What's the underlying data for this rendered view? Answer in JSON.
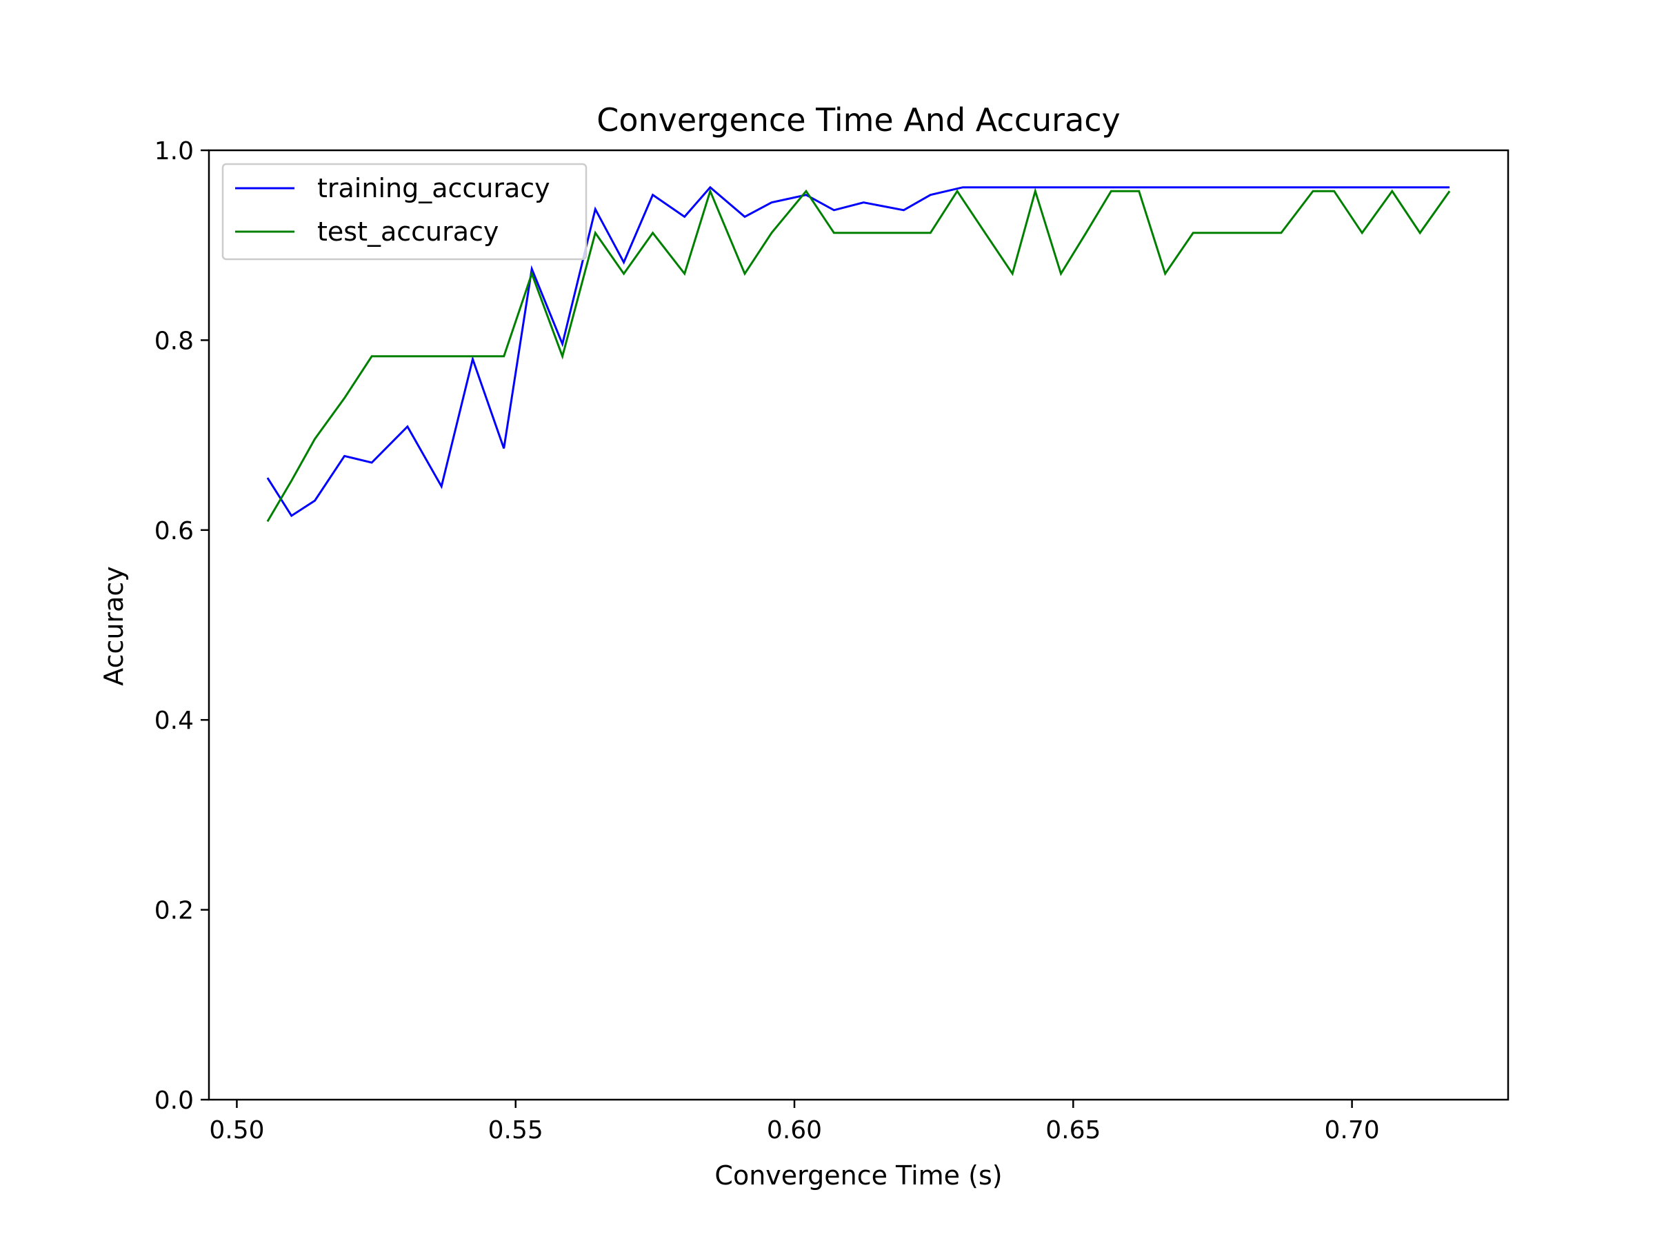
{
  "chart_data": {
    "type": "line",
    "title": "Convergence Time And Accuracy",
    "xlabel": "Convergence Time (s)",
    "ylabel": "Accuracy",
    "xlim": [
      0.495,
      0.728
    ],
    "ylim": [
      0.0,
      1.0
    ],
    "xticks": [
      0.5,
      0.55,
      0.6,
      0.65,
      0.7
    ],
    "xtick_labels": [
      "0.50",
      "0.55",
      "0.60",
      "0.65",
      "0.70"
    ],
    "yticks": [
      0.0,
      0.2,
      0.4,
      0.6,
      0.8,
      1.0
    ],
    "ytick_labels": [
      "0.0",
      "0.2",
      "0.4",
      "0.6",
      "0.8",
      "1.0"
    ],
    "grid": false,
    "legend_position": "upper-left",
    "series": [
      {
        "name": "training_accuracy",
        "color": "#0000ff",
        "points": [
          [
            0.5055,
            0.655
          ],
          [
            0.5098,
            0.615
          ],
          [
            0.514,
            0.631
          ],
          [
            0.5193,
            0.678
          ],
          [
            0.5242,
            0.671
          ],
          [
            0.5306,
            0.709
          ],
          [
            0.5367,
            0.646
          ],
          [
            0.5423,
            0.78
          ],
          [
            0.5479,
            0.686
          ],
          [
            0.5529,
            0.875
          ],
          [
            0.5584,
            0.796
          ],
          [
            0.5643,
            0.938
          ],
          [
            0.5694,
            0.882
          ],
          [
            0.5746,
            0.953
          ],
          [
            0.5803,
            0.93
          ],
          [
            0.5849,
            0.961
          ],
          [
            0.5911,
            0.93
          ],
          [
            0.5959,
            0.945
          ],
          [
            0.6021,
            0.953
          ],
          [
            0.6071,
            0.937
          ],
          [
            0.6124,
            0.945
          ],
          [
            0.6196,
            0.937
          ],
          [
            0.6244,
            0.953
          ],
          [
            0.6302,
            0.961
          ],
          [
            0.6605,
            0.961
          ],
          [
            0.6905,
            0.961
          ],
          [
            0.7175,
            0.961
          ]
        ]
      },
      {
        "name": "test_accuracy",
        "color": "#008000",
        "points": [
          [
            0.5055,
            0.609
          ],
          [
            0.5098,
            0.652
          ],
          [
            0.514,
            0.696
          ],
          [
            0.5193,
            0.739
          ],
          [
            0.5242,
            0.783
          ],
          [
            0.5306,
            0.783
          ],
          [
            0.5367,
            0.783
          ],
          [
            0.5423,
            0.783
          ],
          [
            0.5479,
            0.783
          ],
          [
            0.5529,
            0.87
          ],
          [
            0.5584,
            0.783
          ],
          [
            0.5643,
            0.913
          ],
          [
            0.5694,
            0.87
          ],
          [
            0.5746,
            0.913
          ],
          [
            0.5803,
            0.87
          ],
          [
            0.5849,
            0.957
          ],
          [
            0.5911,
            0.87
          ],
          [
            0.5959,
            0.913
          ],
          [
            0.6021,
            0.957
          ],
          [
            0.6071,
            0.913
          ],
          [
            0.6124,
            0.913
          ],
          [
            0.6196,
            0.913
          ],
          [
            0.6244,
            0.913
          ],
          [
            0.6292,
            0.957
          ],
          [
            0.6342,
            0.913
          ],
          [
            0.6391,
            0.87
          ],
          [
            0.6432,
            0.957
          ],
          [
            0.6478,
            0.87
          ],
          [
            0.6523,
            0.913
          ],
          [
            0.6568,
            0.957
          ],
          [
            0.6618,
            0.957
          ],
          [
            0.6665,
            0.87
          ],
          [
            0.6715,
            0.913
          ],
          [
            0.677,
            0.913
          ],
          [
            0.6825,
            0.913
          ],
          [
            0.6873,
            0.913
          ],
          [
            0.693,
            0.957
          ],
          [
            0.6968,
            0.957
          ],
          [
            0.7018,
            0.913
          ],
          [
            0.7072,
            0.957
          ],
          [
            0.7122,
            0.913
          ],
          [
            0.7175,
            0.957
          ]
        ]
      }
    ]
  }
}
